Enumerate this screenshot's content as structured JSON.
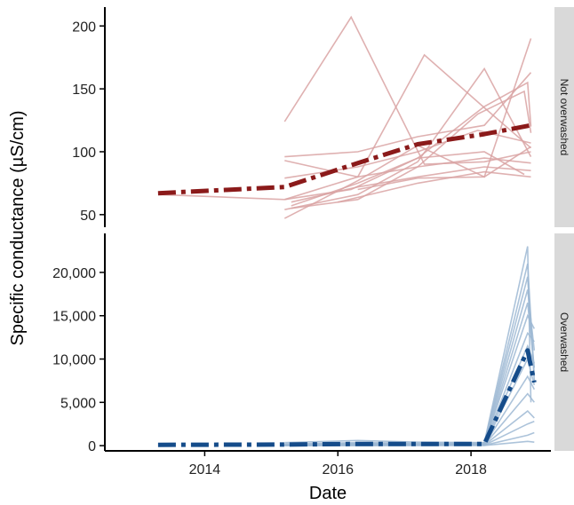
{
  "chart_data": {
    "type": "line",
    "xlabel": "Date",
    "ylabel": "Specific conductance (µS/cm)",
    "x_ticks": [
      2014,
      2016,
      2018
    ],
    "x_range": [
      2012.5,
      2019.2
    ],
    "grid": false,
    "legend": "none",
    "panels": [
      {
        "name": "Not overwashed",
        "ylim": [
          40,
          215
        ],
        "y_ticks": [
          50,
          100,
          150,
          200
        ],
        "y_tick_labels": [
          "50",
          "100",
          "150",
          "200"
        ],
        "individual_color": "#d9a3a3",
        "mean_color": "#8b1a1a",
        "mean": {
          "x": [
            2013.3,
            2015.2,
            2016.3,
            2017.2,
            2018.2,
            2018.9
          ],
          "y": [
            67,
            72,
            91,
            106,
            114,
            121
          ]
        },
        "individual_series": [
          {
            "x": [
              2013.3,
              2015.2
            ],
            "y": [
              66,
              62
            ]
          },
          {
            "x": [
              2015.2,
              2016.2,
              2017.3,
              2018.2,
              2018.9
            ],
            "y": [
              124,
              207,
              90,
              92,
              100
            ]
          },
          {
            "x": [
              2015.2,
              2016.3,
              2017.2,
              2018.2,
              2018.9
            ],
            "y": [
              96,
              100,
              112,
              121,
              163
            ]
          },
          {
            "x": [
              2015.2,
              2016.3,
              2017.2,
              2018.2,
              2018.9
            ],
            "y": [
              93,
              80,
              88,
              95,
              91
            ]
          },
          {
            "x": [
              2015.2,
              2016.3,
              2017.3,
              2018.2,
              2018.9
            ],
            "y": [
              62,
              80,
              177,
              135,
              103
            ]
          },
          {
            "x": [
              2015.2,
              2016.3,
              2017.2,
              2018.2,
              2018.9
            ],
            "y": [
              54,
              66,
              92,
              166,
              96
            ]
          },
          {
            "x": [
              2015.2,
              2016.3,
              2017.2,
              2018.2,
              2018.9
            ],
            "y": [
              47,
              77,
              105,
              80,
              190
            ]
          },
          {
            "x": [
              2015.3,
              2016.3,
              2017.2,
              2018.2,
              2018.9
            ],
            "y": [
              60,
              72,
              80,
              88,
              85
            ]
          },
          {
            "x": [
              2015.3,
              2016.3,
              2017.2,
              2018.1,
              2018.8,
              2018.9
            ],
            "y": [
              55,
              62,
              88,
              130,
              148,
              115
            ]
          },
          {
            "x": [
              2016.0,
              2017.2,
              2018.2,
              2018.9
            ],
            "y": [
              60,
              75,
              84,
              80
            ]
          },
          {
            "x": [
              2016.3,
              2017.2,
              2018.2,
              2018.9
            ],
            "y": [
              70,
              79,
              80,
              104
            ]
          },
          {
            "x": [
              2015.2,
              2016.3,
              2017.2,
              2018.1,
              2018.9
            ],
            "y": [
              79,
              88,
              100,
              117,
              107
            ]
          },
          {
            "x": [
              2015.2,
              2016.2,
              2017.2,
              2018.2,
              2018.85,
              2018.9
            ],
            "y": [
              62,
              70,
              95,
              136,
              155,
              120
            ]
          },
          {
            "x": [
              2015.3,
              2016.3,
              2017.2,
              2018.2,
              2018.8
            ],
            "y": [
              57,
              75,
              95,
              100,
              82
            ]
          }
        ]
      },
      {
        "name": "Overwashed",
        "ylim": [
          -600,
          24500
        ],
        "y_ticks": [
          0,
          5000,
          10000,
          15000,
          20000
        ],
        "y_tick_labels": [
          "0",
          "5,000",
          "10,000",
          "15,000",
          "20,000"
        ],
        "individual_color": "#9eb8d3",
        "mean_color": "#154c8a",
        "mean": {
          "x": [
            2013.3,
            2015.2,
            2016.3,
            2017.2,
            2018.2,
            2018.85,
            2018.95
          ],
          "y": [
            100,
            130,
            200,
            200,
            200,
            11000,
            7300
          ]
        },
        "individual_series": [
          {
            "x": [
              2015.2,
              2016.3,
              2017.2,
              2018.2,
              2018.85,
              2018.9
            ],
            "y": [
              350,
              600,
              400,
              350,
              23000,
              5000
            ]
          },
          {
            "x": [
              2015.2,
              2016.3,
              2017.2,
              2018.2,
              2018.85,
              2018.95
            ],
            "y": [
              200,
              350,
              300,
              300,
              21000,
              8000
            ]
          },
          {
            "x": [
              2015.2,
              2016.3,
              2017.2,
              2018.2,
              2018.85,
              2018.95
            ],
            "y": [
              150,
              250,
              200,
              250,
              19500,
              7500
            ]
          },
          {
            "x": [
              2015.2,
              2016.3,
              2017.2,
              2018.2,
              2018.85,
              2018.95
            ],
            "y": [
              100,
              200,
              150,
              200,
              18000,
              11000
            ]
          },
          {
            "x": [
              2015.2,
              2016.3,
              2017.2,
              2018.2,
              2018.85,
              2018.95
            ],
            "y": [
              120,
              150,
              150,
              150,
              16500,
              9000
            ]
          },
          {
            "x": [
              2015.2,
              2016.3,
              2017.2,
              2018.2,
              2018.85,
              2018.95
            ],
            "y": [
              100,
              150,
              180,
              200,
              15000,
              13500
            ]
          },
          {
            "x": [
              2015.2,
              2016.3,
              2017.2,
              2018.2,
              2018.85,
              2018.95
            ],
            "y": [
              80,
              120,
              130,
              150,
              13000,
              12000
            ]
          },
          {
            "x": [
              2015.2,
              2016.3,
              2017.2,
              2018.2,
              2018.85,
              2018.95
            ],
            "y": [
              60,
              100,
              120,
              120,
              11500,
              9500
            ]
          },
          {
            "x": [
              2015.2,
              2016.3,
              2017.2,
              2018.2,
              2018.85,
              2018.95
            ],
            "y": [
              50,
              90,
              100,
              100,
              10000,
              7000
            ]
          },
          {
            "x": [
              2015.2,
              2016.3,
              2017.2,
              2018.2,
              2018.85,
              2018.95
            ],
            "y": [
              40,
              80,
              90,
              100,
              8000,
              6500
            ]
          },
          {
            "x": [
              2015.2,
              2016.3,
              2017.2,
              2018.2,
              2018.85,
              2018.95
            ],
            "y": [
              30,
              60,
              80,
              80,
              6000,
              5000
            ]
          },
          {
            "x": [
              2015.2,
              2016.3,
              2017.2,
              2018.2,
              2018.85,
              2018.95
            ],
            "y": [
              20,
              50,
              70,
              70,
              4000,
              3200
            ]
          },
          {
            "x": [
              2015.2,
              2016.3,
              2017.2,
              2018.2,
              2018.85,
              2018.95
            ],
            "y": [
              20,
              40,
              60,
              60,
              2500,
              2800
            ]
          },
          {
            "x": [
              2015.2,
              2016.3,
              2017.2,
              2018.2,
              2018.85,
              2018.95
            ],
            "y": [
              10,
              30,
              40,
              50,
              1200,
              1500
            ]
          },
          {
            "x": [
              2015.2,
              2016.3,
              2017.2,
              2018.2,
              2018.85,
              2018.95
            ],
            "y": [
              10,
              20,
              30,
              30,
              500,
              400
            ]
          }
        ]
      }
    ]
  }
}
